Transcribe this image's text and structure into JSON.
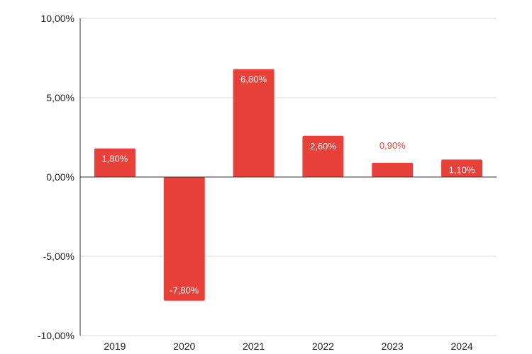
{
  "chart_data": {
    "type": "bar",
    "title": "",
    "xlabel": "",
    "ylabel": "",
    "categories": [
      "2019",
      "2020",
      "2021",
      "2022",
      "2023",
      "2024"
    ],
    "values": [
      1.8,
      -7.8,
      6.8,
      2.6,
      0.9,
      1.1
    ],
    "data_labels": [
      "1,80%",
      "-7,80%",
      "6,80%",
      "2,60%",
      "0,90%",
      "1,10%"
    ],
    "ylim": [
      -10,
      10
    ],
    "yticks": [
      {
        "value": 10,
        "label": "10,00%"
      },
      {
        "value": 5,
        "label": "5,00%"
      },
      {
        "value": 0,
        "label": "0,00%"
      },
      {
        "value": -5,
        "label": "-5,00%"
      },
      {
        "value": -10,
        "label": "-10,00%"
      }
    ],
    "grid": true,
    "legend": "none",
    "colors": {
      "bar": "#e8413a",
      "label_inside": "#ffffff",
      "label_outside": "#e8413a",
      "grid": "#d9d9d9",
      "axis": "#333333"
    }
  }
}
